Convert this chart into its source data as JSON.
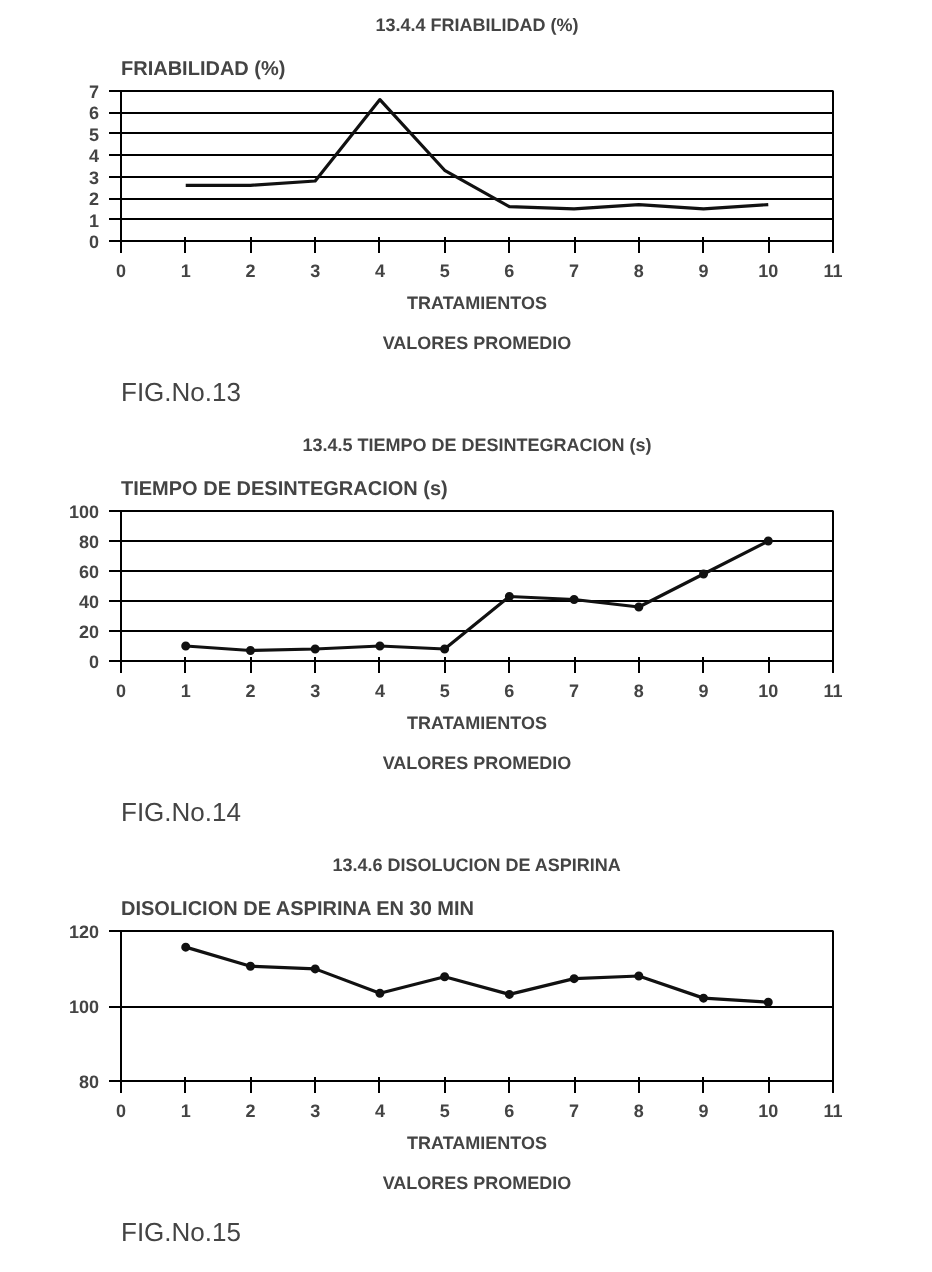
{
  "chart_data": [
    {
      "type": "line",
      "title": "13.4.4 FRIABILIDAD (%)",
      "subtitle": "FRIABILIDAD (%)",
      "xlabel": "TRATAMIENTOS",
      "annotations": [
        "VALORES PROMEDIO",
        "FIG.No.13"
      ],
      "x": [
        1,
        2,
        3,
        4,
        5,
        6,
        7,
        8,
        9,
        10
      ],
      "series": [
        {
          "color": "#111111",
          "values": [
            2.6,
            2.6,
            2.8,
            6.6,
            3.3,
            1.6,
            1.5,
            1.7,
            1.5,
            1.7
          ]
        }
      ],
      "xlim": [
        0,
        11
      ],
      "xticks": [
        0,
        1,
        2,
        3,
        4,
        5,
        6,
        7,
        8,
        9,
        10,
        11
      ],
      "ylim": [
        0,
        7
      ],
      "yticks": [
        0,
        1,
        2,
        3,
        4,
        5,
        6,
        7
      ],
      "grid": "y"
    },
    {
      "type": "line",
      "title": "13.4.5 TIEMPO DE DESINTEGRACION (s)",
      "subtitle": "TIEMPO DE DESINTEGRACION (s)",
      "xlabel": "TRATAMIENTOS",
      "annotations": [
        "VALORES PROMEDIO",
        "FIG.No.14"
      ],
      "x": [
        1,
        2,
        3,
        4,
        5,
        6,
        7,
        8,
        9,
        10
      ],
      "series": [
        {
          "color": "#111111",
          "values": [
            10,
            7,
            8,
            10,
            8,
            43,
            41,
            36,
            58,
            80
          ]
        }
      ],
      "xlim": [
        0,
        11
      ],
      "xticks": [
        0,
        1,
        2,
        3,
        4,
        5,
        6,
        7,
        8,
        9,
        10,
        11
      ],
      "ylim": [
        0,
        100
      ],
      "yticks": [
        0,
        20,
        40,
        60,
        80,
        100
      ],
      "grid": "y",
      "marker": "circle"
    },
    {
      "type": "line",
      "title": "13.4.6 DISOLUCION DE ASPIRINA",
      "subtitle": "DISOLICION DE ASPIRINA EN 30 MIN",
      "xlabel": "TRATAMIENTOS",
      "annotations": [
        "VALORES PROMEDIO",
        "FIG.No.15"
      ],
      "x": [
        1,
        2,
        3,
        4,
        5,
        6,
        7,
        8,
        9,
        10
      ],
      "series": [
        {
          "color": "#111111",
          "values": [
            115.7,
            110.6,
            109.9,
            103.4,
            107.8,
            103.1,
            107.3,
            108.0,
            102.1,
            101.0
          ]
        }
      ],
      "xlim": [
        0,
        11
      ],
      "xticks": [
        0,
        1,
        2,
        3,
        4,
        5,
        6,
        7,
        8,
        9,
        10,
        11
      ],
      "ylim": [
        80,
        120
      ],
      "yticks": [
        80,
        100,
        120
      ],
      "grid": "y",
      "marker": "circle"
    }
  ]
}
